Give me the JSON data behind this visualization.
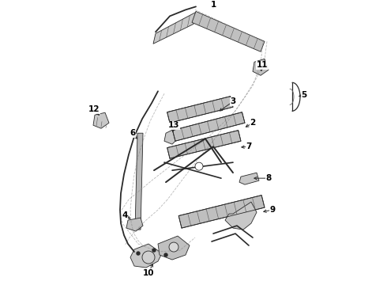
{
  "background_color": "#ffffff",
  "line_color": "#2a2a2a",
  "label_color": "#000000",
  "fig_width": 4.9,
  "fig_height": 3.6,
  "dpi": 100,
  "lw_main": 1.3,
  "lw_med": 0.9,
  "lw_thin": 0.6,
  "label_fontsize": 7.5
}
